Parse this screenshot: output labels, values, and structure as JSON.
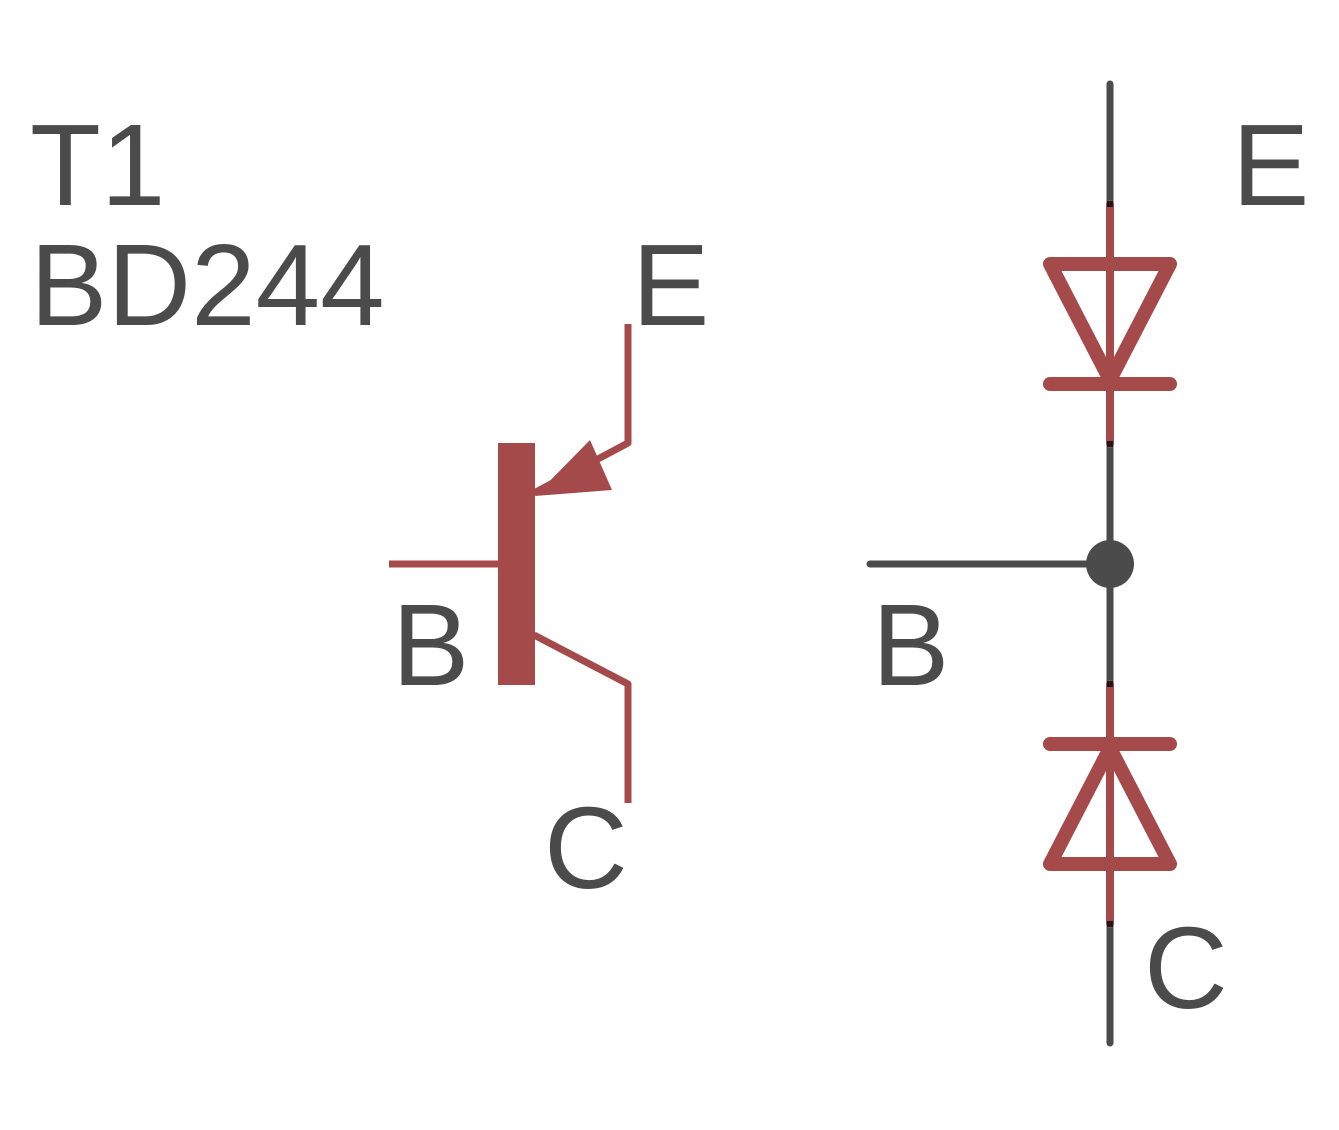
{
  "component": {
    "designator": "T1",
    "part_number": "BD244"
  },
  "transistor_symbol": {
    "emitter_label": "E",
    "base_label": "B",
    "collector_label": "C"
  },
  "diode_model": {
    "emitter_label": "E",
    "base_label": "B",
    "collector_label": "C"
  },
  "colors": {
    "symbol": "#a54a4a",
    "wire": "#4b4b4b",
    "text": "#4b4b4b",
    "background": "#ffffff"
  }
}
